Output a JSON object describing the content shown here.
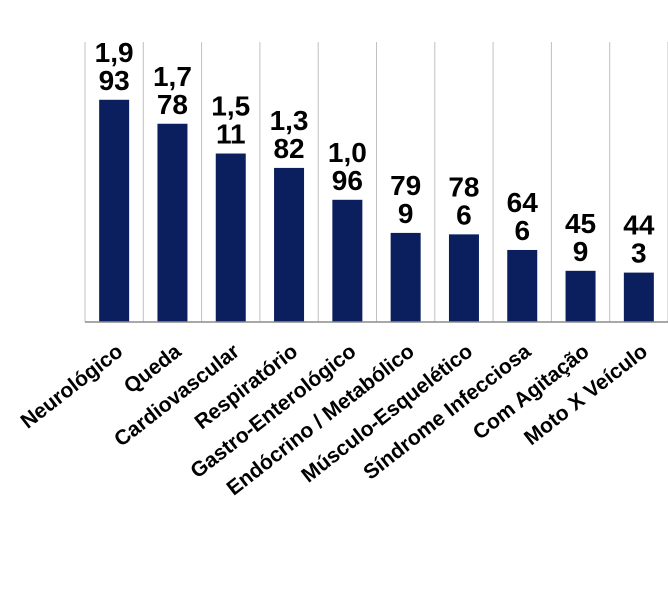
{
  "chart_data": {
    "type": "bar",
    "categories": [
      "Neurológico",
      "Queda",
      "Cardiovascular",
      "Respiratório",
      "Gastro-Enterológico",
      "Endócrino / Metabólico",
      "Músculo-Esquelético",
      "Síndrome Infecciosa",
      "Com Agitação",
      "Moto X Veículo"
    ],
    "values": [
      1993,
      1778,
      1511,
      1382,
      1096,
      799,
      786,
      646,
      459,
      443
    ],
    "data_labels": [
      [
        "1,9",
        "93"
      ],
      [
        "1,7",
        "78"
      ],
      [
        "1,5",
        "11"
      ],
      [
        "1,3",
        "82"
      ],
      [
        "1,0",
        "96"
      ],
      [
        "79",
        "9"
      ],
      [
        "78",
        "6"
      ],
      [
        "64",
        "6"
      ],
      [
        "45",
        "9"
      ],
      [
        "44",
        "3"
      ]
    ],
    "bar_color": "#0b1f5e",
    "grid": true,
    "gridline_color": "#c0c0c0",
    "legend": "none",
    "title": "",
    "xlabel": "",
    "ylabel": ""
  }
}
